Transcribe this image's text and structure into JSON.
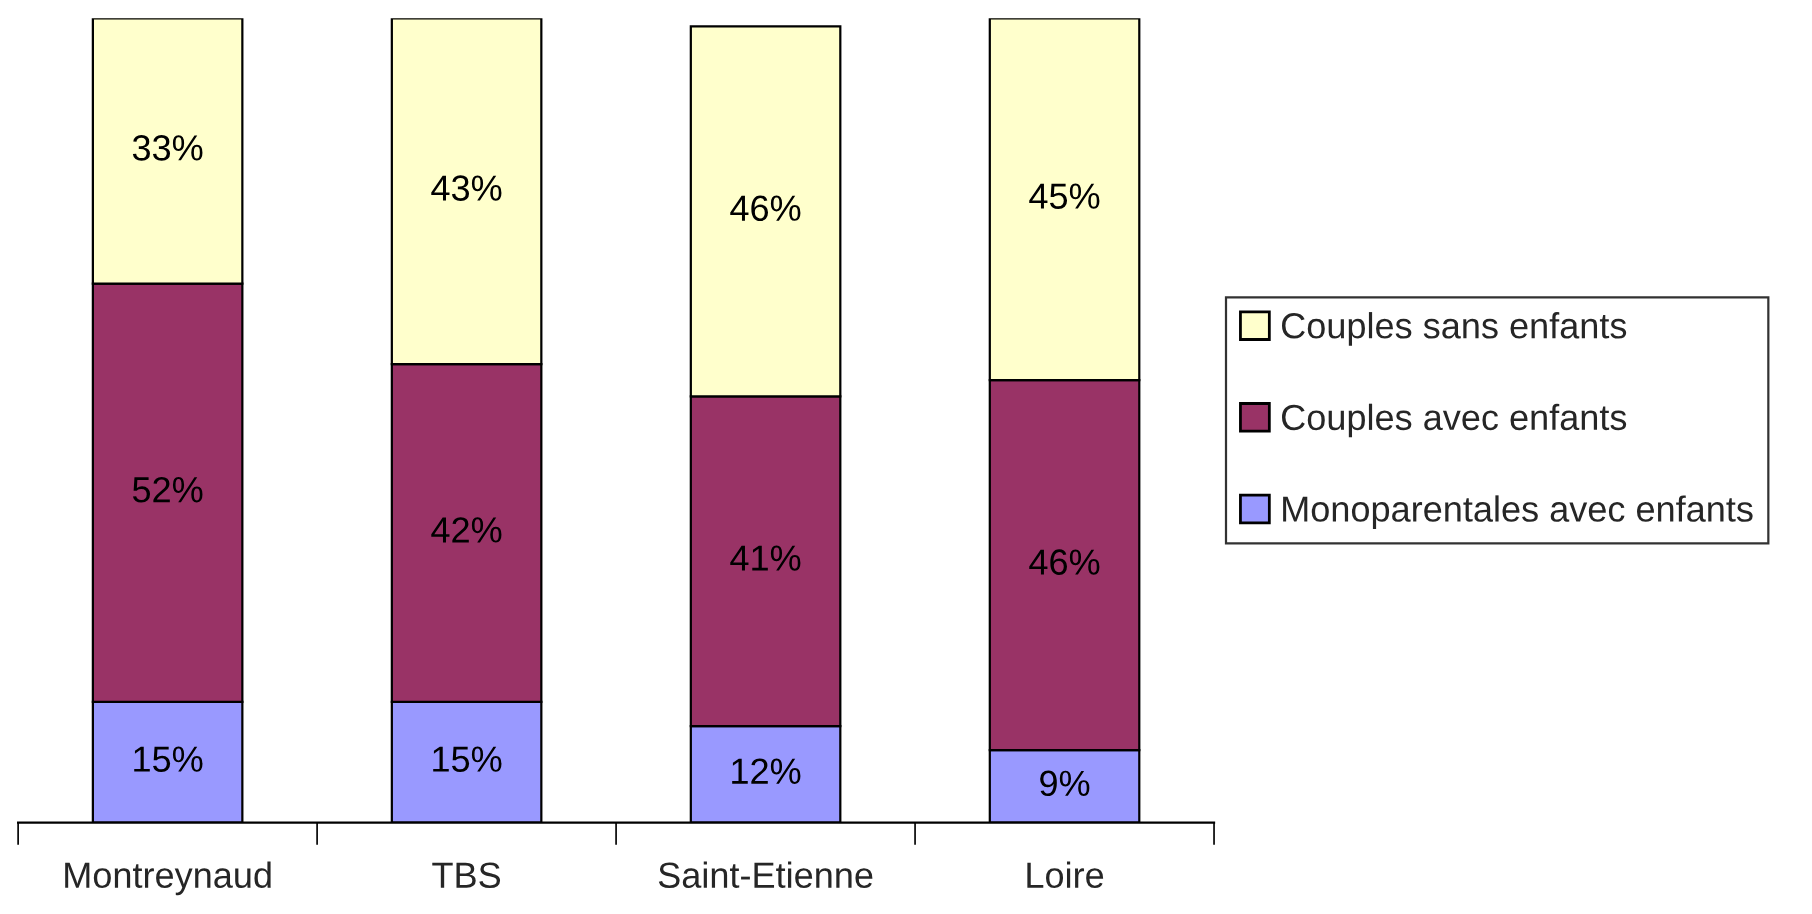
{
  "chart_data": {
    "type": "bar",
    "stacked": true,
    "legend": "right",
    "grid": false,
    "categories": [
      "Montreynaud",
      "TBS",
      "Saint-Etienne",
      "Loire"
    ],
    "series": [
      {
        "name": "Monoparentales avec enfants",
        "color": "#9999ff",
        "values": [
          15,
          15,
          12,
          9
        ],
        "value_labels": [
          "15%",
          "15%",
          "12%",
          "9%"
        ]
      },
      {
        "name": "Couples avec enfants",
        "color": "#993366",
        "values": [
          52,
          42,
          41,
          46
        ],
        "value_labels": [
          "52%",
          "42%",
          "41%",
          "46%"
        ]
      },
      {
        "name": "Couples sans enfants",
        "color": "#ffffcc",
        "values": [
          33,
          43,
          46,
          45
        ],
        "value_labels": [
          "33%",
          "43%",
          "46%",
          "45%"
        ]
      }
    ]
  }
}
